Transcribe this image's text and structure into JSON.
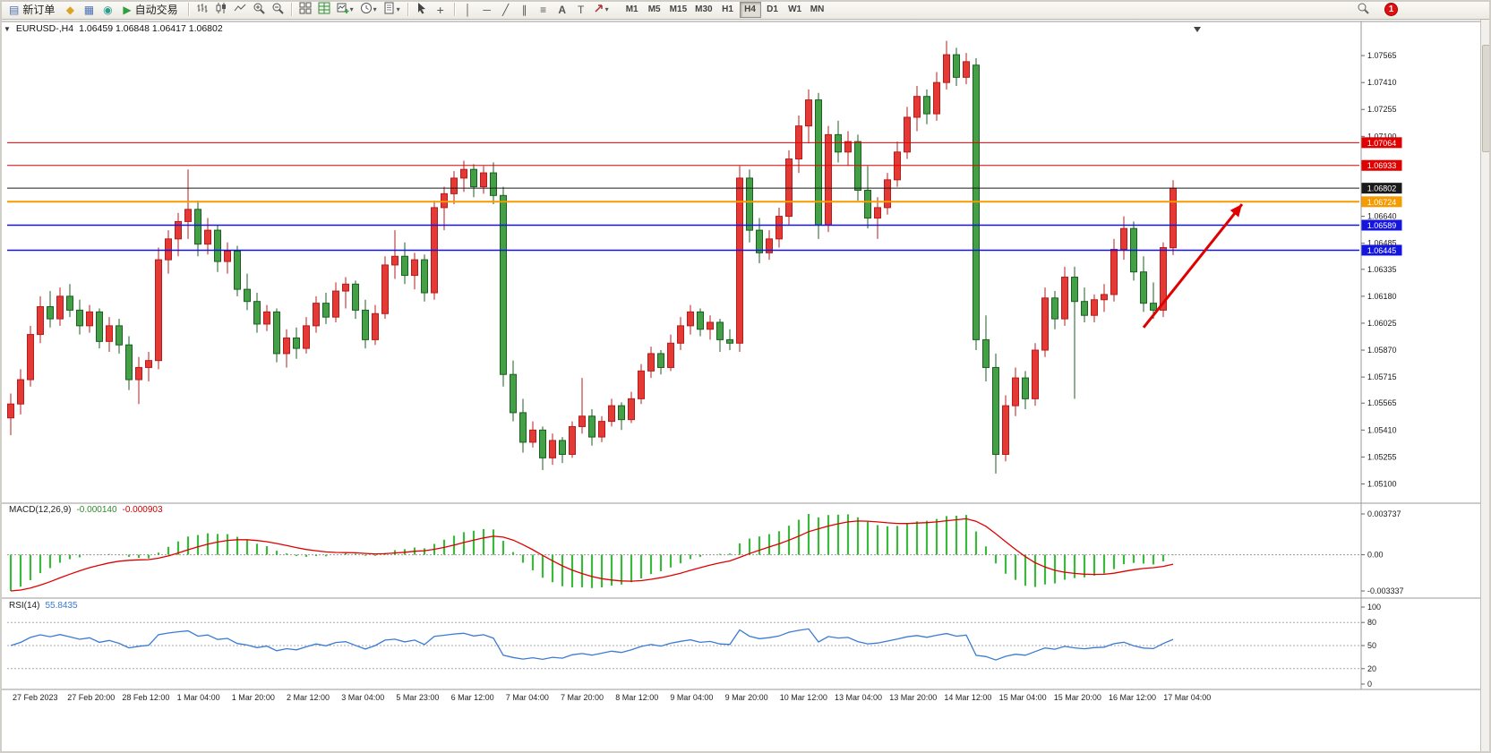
{
  "toolbar": {
    "new_order_label": "新订单",
    "auto_trading_label": "自动交易",
    "timeframes": [
      "M1",
      "M5",
      "M15",
      "M30",
      "H1",
      "H4",
      "D1",
      "W1",
      "MN"
    ],
    "active_timeframe": "H4",
    "notification_count": "1"
  },
  "icons": {
    "new_order": "▤",
    "market_watch": "◆",
    "data_window": "▦",
    "navigator": "◉",
    "auto_trading": "▶",
    "dropdown_caret": "▾",
    "vertical_line": "│",
    "horizontal_line": "─",
    "trendline": "╱",
    "equidistant_channel": "∥",
    "fibonacci": "≡",
    "text": "A",
    "text_label": "T",
    "crosshair": "+",
    "chart_collapse": "▼"
  },
  "chart": {
    "symbol_period": "EURUSD-,H4",
    "ohlc": "1.06459 1.06848 1.06417 1.06802"
  },
  "chart_data": {
    "type": "candlestick",
    "symbol": "EURUSD-",
    "period": "H4",
    "current": {
      "open": "1.06459",
      "high": "1.06848",
      "low": "1.06417",
      "close": "1.06802"
    },
    "price_axis": {
      "min": 1.0502,
      "max": 1.0772,
      "ticks": [
        "1.07565",
        "1.07410",
        "1.07255",
        "1.07100",
        "1.06945",
        "1.06640",
        "1.06485",
        "1.06335",
        "1.06180",
        "1.06025",
        "1.05870",
        "1.05715",
        "1.05565",
        "1.05410",
        "1.05255",
        "1.05100"
      ]
    },
    "time_axis": [
      "27 Feb 2023",
      "27 Feb 20:00",
      "28 Feb 12:00",
      "1 Mar 04:00",
      "1 Mar 20:00",
      "2 Mar 12:00",
      "3 Mar 04:00",
      "5 Mar 23:00",
      "6 Mar 12:00",
      "7 Mar 04:00",
      "7 Mar 20:00",
      "8 Mar 12:00",
      "9 Mar 04:00",
      "9 Mar 20:00",
      "10 Mar 12:00",
      "13 Mar 04:00",
      "13 Mar 20:00",
      "14 Mar 12:00",
      "15 Mar 04:00",
      "15 Mar 20:00",
      "16 Mar 12:00",
      "17 Mar 04:00"
    ],
    "hlines": [
      {
        "price": 1.07064,
        "label": "1.07064",
        "color": "#e00000",
        "width": 1
      },
      {
        "price": 1.06933,
        "label": "1.06933",
        "color": "#e00000",
        "width": 1
      },
      {
        "price": 1.06802,
        "label": "1.06802",
        "color": "#1a1a1a",
        "width": 1
      },
      {
        "price": 1.06724,
        "label": "1.06724",
        "color": "#f59b00",
        "width": 2
      },
      {
        "price": 1.06589,
        "label": "1.06589",
        "color": "#1515e0",
        "width": 1.5
      },
      {
        "price": 1.06445,
        "label": "1.06445",
        "color": "#1515e0",
        "width": 1.5
      }
    ],
    "colors": {
      "up": "#e53935",
      "up_dark": "#b71c1c",
      "down": "#43a047",
      "down_dark": "#1b5e20",
      "macd_hist": "#3cb83c",
      "macd_signal": "#e00000",
      "rsi_line": "#3b7bd4",
      "arrow": "#e00000"
    },
    "indicators": {
      "macd": {
        "name": "MACD(12,26,9)",
        "value_main": "-0.000140",
        "value_signal": "-0.000903",
        "scale_top": "0.003737",
        "scale_zero": "0.00",
        "scale_bottom": "-0.003337",
        "params": {
          "fast": 12,
          "slow": 26,
          "signal": 9
        }
      },
      "rsi": {
        "name": "RSI(14)",
        "value": "55.8435",
        "period": 14,
        "levels": [
          80,
          50,
          20
        ],
        "scale_labels": [
          "100",
          "80",
          "50",
          "20",
          "0"
        ]
      }
    },
    "annotations": {
      "trend_arrow": {
        "from_index": 115,
        "from_price": 1.06,
        "to_index": 125,
        "to_price": 1.0671
      }
    },
    "candles": [
      [
        1.0548,
        1.0562,
        1.0538,
        1.0556
      ],
      [
        1.0556,
        1.0576,
        1.055,
        1.057
      ],
      [
        1.057,
        1.0601,
        1.0566,
        1.0596
      ],
      [
        1.0596,
        1.0618,
        1.0591,
        1.0612
      ],
      [
        1.0612,
        1.0621,
        1.06,
        1.0605
      ],
      [
        1.0605,
        1.0623,
        1.0601,
        1.0618
      ],
      [
        1.0618,
        1.0625,
        1.0606,
        1.061
      ],
      [
        1.061,
        1.0616,
        1.0596,
        1.0601
      ],
      [
        1.0601,
        1.0613,
        1.0597,
        1.0609
      ],
      [
        1.0609,
        1.0611,
        1.0588,
        1.0592
      ],
      [
        1.0592,
        1.0606,
        1.0586,
        1.0601
      ],
      [
        1.0601,
        1.0605,
        1.0585,
        1.059
      ],
      [
        1.059,
        1.0595,
        1.0564,
        1.057
      ],
      [
        1.057,
        1.0583,
        1.0556,
        1.0577
      ],
      [
        1.0577,
        1.0586,
        1.0569,
        1.0581
      ],
      [
        1.0581,
        1.0646,
        1.0576,
        1.0639
      ],
      [
        1.0639,
        1.0656,
        1.0631,
        1.0651
      ],
      [
        1.0651,
        1.0666,
        1.0641,
        1.0661
      ],
      [
        1.0661,
        1.0691,
        1.0651,
        1.0668
      ],
      [
        1.0668,
        1.0673,
        1.0641,
        1.0648
      ],
      [
        1.0648,
        1.0663,
        1.0642,
        1.0656
      ],
      [
        1.0656,
        1.0659,
        1.0632,
        1.0638
      ],
      [
        1.0638,
        1.0649,
        1.0631,
        1.0644
      ],
      [
        1.0644,
        1.0647,
        1.0618,
        1.0622
      ],
      [
        1.0622,
        1.0631,
        1.061,
        1.0615
      ],
      [
        1.0615,
        1.062,
        1.0597,
        1.0602
      ],
      [
        1.0602,
        1.0613,
        1.0598,
        1.0609
      ],
      [
        1.0609,
        1.0611,
        1.058,
        1.0585
      ],
      [
        1.0585,
        1.0599,
        1.0577,
        1.0594
      ],
      [
        1.0594,
        1.06,
        1.0582,
        1.0588
      ],
      [
        1.0588,
        1.0606,
        1.0585,
        1.0601
      ],
      [
        1.0601,
        1.0618,
        1.0597,
        1.0614
      ],
      [
        1.0614,
        1.062,
        1.0602,
        1.0606
      ],
      [
        1.0606,
        1.0626,
        1.0603,
        1.0621
      ],
      [
        1.0621,
        1.0629,
        1.0611,
        1.0625
      ],
      [
        1.0625,
        1.0627,
        1.0605,
        1.061
      ],
      [
        1.061,
        1.0616,
        1.0588,
        1.0593
      ],
      [
        1.0593,
        1.0613,
        1.059,
        1.0608
      ],
      [
        1.0608,
        1.0641,
        1.0605,
        1.0636
      ],
      [
        1.0636,
        1.0656,
        1.0628,
        1.0641
      ],
      [
        1.0641,
        1.0649,
        1.0625,
        1.063
      ],
      [
        1.063,
        1.0643,
        1.0622,
        1.0639
      ],
      [
        1.0639,
        1.0642,
        1.0615,
        1.062
      ],
      [
        1.062,
        1.0673,
        1.0616,
        1.0669
      ],
      [
        1.0669,
        1.0681,
        1.0656,
        1.0677
      ],
      [
        1.0677,
        1.069,
        1.0671,
        1.0686
      ],
      [
        1.0686,
        1.0696,
        1.0678,
        1.0691
      ],
      [
        1.0691,
        1.0694,
        1.0675,
        1.0681
      ],
      [
        1.0681,
        1.0693,
        1.0677,
        1.0689
      ],
      [
        1.0689,
        1.0695,
        1.0671,
        1.0676
      ],
      [
        1.0676,
        1.0681,
        1.0566,
        1.0573
      ],
      [
        1.0573,
        1.0581,
        1.0546,
        1.0551
      ],
      [
        1.0551,
        1.0559,
        1.0528,
        1.0534
      ],
      [
        1.0534,
        1.0546,
        1.0531,
        1.0541
      ],
      [
        1.0541,
        1.0543,
        1.0518,
        1.0525
      ],
      [
        1.0525,
        1.0539,
        1.0521,
        1.0535
      ],
      [
        1.0535,
        1.0537,
        1.0522,
        1.0527
      ],
      [
        1.0527,
        1.0546,
        1.0525,
        1.0543
      ],
      [
        1.0543,
        1.0571,
        1.0539,
        1.0549
      ],
      [
        1.0549,
        1.0553,
        1.0532,
        1.0537
      ],
      [
        1.0537,
        1.0549,
        1.0534,
        1.0546
      ],
      [
        1.0546,
        1.0559,
        1.0543,
        1.0555
      ],
      [
        1.0555,
        1.0557,
        1.0541,
        1.0547
      ],
      [
        1.0547,
        1.0563,
        1.0545,
        1.0559
      ],
      [
        1.0559,
        1.0579,
        1.0556,
        1.0575
      ],
      [
        1.0575,
        1.0589,
        1.0571,
        1.0585
      ],
      [
        1.0585,
        1.0587,
        1.0573,
        1.0577
      ],
      [
        1.0577,
        1.0596,
        1.0575,
        1.0591
      ],
      [
        1.0591,
        1.0606,
        1.0587,
        1.0601
      ],
      [
        1.0601,
        1.0613,
        1.0596,
        1.0609
      ],
      [
        1.0609,
        1.0611,
        1.0595,
        1.0599
      ],
      [
        1.0599,
        1.0607,
        1.0593,
        1.0603
      ],
      [
        1.0603,
        1.0605,
        1.0586,
        1.0593
      ],
      [
        1.0593,
        1.0599,
        1.0587,
        1.0591
      ],
      [
        1.0591,
        1.0693,
        1.0586,
        1.0686
      ],
      [
        1.0686,
        1.0691,
        1.0649,
        1.0656
      ],
      [
        1.0656,
        1.0663,
        1.0637,
        1.0643
      ],
      [
        1.0643,
        1.0656,
        1.0639,
        1.0651
      ],
      [
        1.0651,
        1.0669,
        1.0646,
        1.0664
      ],
      [
        1.0664,
        1.0702,
        1.0659,
        1.0697
      ],
      [
        1.0697,
        1.0722,
        1.0689,
        1.0716
      ],
      [
        1.0716,
        1.0737,
        1.0706,
        1.0731
      ],
      [
        1.0731,
        1.0735,
        1.0651,
        1.0659
      ],
      [
        1.0659,
        1.0716,
        1.0655,
        1.0711
      ],
      [
        1.0711,
        1.0719,
        1.0695,
        1.0701
      ],
      [
        1.0701,
        1.0713,
        1.0693,
        1.0707
      ],
      [
        1.0707,
        1.0711,
        1.0673,
        1.0679
      ],
      [
        1.0679,
        1.0693,
        1.0657,
        1.0663
      ],
      [
        1.0663,
        1.0675,
        1.0651,
        1.0669
      ],
      [
        1.0669,
        1.0689,
        1.0665,
        1.0685
      ],
      [
        1.0685,
        1.0707,
        1.0681,
        1.0701
      ],
      [
        1.0701,
        1.0727,
        1.0697,
        1.0721
      ],
      [
        1.0721,
        1.0739,
        1.0713,
        1.0733
      ],
      [
        1.0733,
        1.0737,
        1.0717,
        1.0723
      ],
      [
        1.0723,
        1.0747,
        1.0719,
        1.0741
      ],
      [
        1.0741,
        1.0765,
        1.0737,
        1.0757
      ],
      [
        1.0757,
        1.0761,
        1.0739,
        1.0744
      ],
      [
        1.0744,
        1.0758,
        1.074,
        1.0753
      ],
      [
        1.0751,
        1.0755,
        1.0587,
        1.0593
      ],
      [
        1.0593,
        1.0607,
        1.0569,
        1.0577
      ],
      [
        1.0577,
        1.0585,
        1.0516,
        1.0527
      ],
      [
        1.0527,
        1.0561,
        1.0523,
        1.0555
      ],
      [
        1.0555,
        1.0577,
        1.0549,
        1.0571
      ],
      [
        1.0571,
        1.0575,
        1.0553,
        1.0559
      ],
      [
        1.0559,
        1.0591,
        1.0555,
        1.0587
      ],
      [
        1.0587,
        1.0623,
        1.0583,
        1.0617
      ],
      [
        1.0617,
        1.0621,
        1.0599,
        1.0605
      ],
      [
        1.0605,
        1.0635,
        1.0601,
        1.0629
      ],
      [
        1.0629,
        1.0635,
        1.0559,
        1.0615
      ],
      [
        1.0615,
        1.0623,
        1.0603,
        1.0607
      ],
      [
        1.0607,
        1.0619,
        1.0603,
        1.0616
      ],
      [
        1.0616,
        1.0625,
        1.0609,
        1.0619
      ],
      [
        1.0619,
        1.0651,
        1.0615,
        1.0645
      ],
      [
        1.0645,
        1.0664,
        1.0639,
        1.0657
      ],
      [
        1.0657,
        1.0661,
        1.0627,
        1.0632
      ],
      [
        1.0632,
        1.0641,
        1.0609,
        1.0614
      ],
      [
        1.0614,
        1.0626,
        1.0605,
        1.061
      ],
      [
        1.061,
        1.0649,
        1.0606,
        1.0646
      ],
      [
        1.06459,
        1.06848,
        1.06417,
        1.06802
      ]
    ]
  }
}
